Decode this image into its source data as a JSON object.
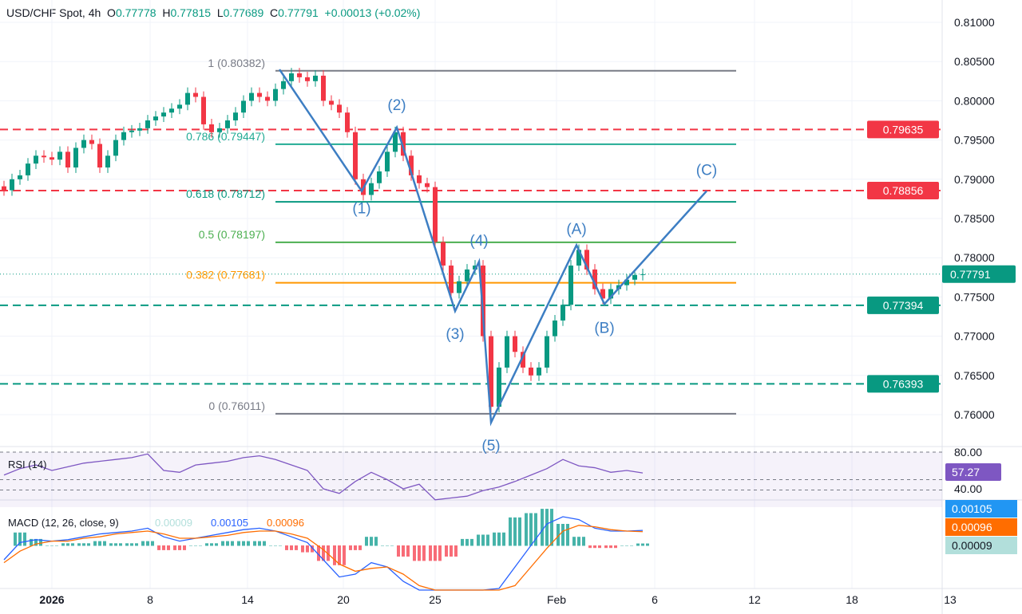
{
  "header": {
    "symbol": "USD/CHF Spot, 4h",
    "open_label": "O",
    "open": "0.77778",
    "high_label": "H",
    "high": "0.77815",
    "low_label": "L",
    "low": "0.77689",
    "close_label": "C",
    "close": "0.77791",
    "change": "+0.00013 (+0.02%)"
  },
  "colors": {
    "up": "#089981",
    "down": "#f23645",
    "wave": "#3d7ec3",
    "red_level": "#f23645",
    "green_level": "#089981"
  },
  "chart_data": [
    {
      "type": "candlestick",
      "title": "USD/CHF Spot, 4h",
      "ylim": [
        0.7555,
        0.8125
      ],
      "y_ticks": [
        "0.81000",
        "0.80500",
        "0.80000",
        "0.79500",
        "0.79000",
        "0.78500",
        "0.78000",
        "0.77500",
        "0.77000",
        "0.76500",
        "0.76000"
      ],
      "x_ticks": [
        "2026",
        "8",
        "14",
        "20",
        "25",
        "Feb",
        "6",
        "12",
        "18",
        "13"
      ],
      "closes": [
        0.7886,
        0.79,
        0.7905,
        0.792,
        0.793,
        0.7928,
        0.7925,
        0.7935,
        0.7915,
        0.794,
        0.795,
        0.7945,
        0.7915,
        0.793,
        0.795,
        0.796,
        0.7962,
        0.7965,
        0.7975,
        0.798,
        0.7985,
        0.799,
        0.7995,
        0.801,
        0.8005,
        0.797,
        0.796,
        0.7965,
        0.7975,
        0.7985,
        0.8,
        0.801,
        0.8005,
        0.8,
        0.8015,
        0.8025,
        0.8035,
        0.803,
        0.8025,
        0.8032,
        0.8,
        0.7995,
        0.7985,
        0.796,
        0.79,
        0.788,
        0.7895,
        0.791,
        0.7935,
        0.796,
        0.793,
        0.7905,
        0.7895,
        0.789,
        0.782,
        0.779,
        0.7755,
        0.777,
        0.7785,
        0.779,
        0.77,
        0.761,
        0.766,
        0.77,
        0.768,
        0.766,
        0.765,
        0.766,
        0.77,
        0.772,
        0.774,
        0.779,
        0.781,
        0.7785,
        0.776,
        0.7748,
        0.776,
        0.7765,
        0.7772,
        0.7778,
        0.7779
      ],
      "last_price": "0.77791",
      "fibonacci": [
        {
          "label": "1 (0.80382)",
          "value": 0.80382,
          "color": "#787b86"
        },
        {
          "label": "0.786 (0.79447)",
          "value": 0.79447,
          "color": "#22ab94"
        },
        {
          "label": "0.618 (0.78712)",
          "value": 0.78712,
          "color": "#089981"
        },
        {
          "label": "0.5 (0.78197)",
          "value": 0.78197,
          "color": "#4caf50"
        },
        {
          "label": "0.382 (0.77681)",
          "value": 0.77681,
          "color": "#ff9800"
        },
        {
          "label": "0 (0.76011)",
          "value": 0.76011,
          "color": "#787b86"
        }
      ],
      "levels": [
        {
          "value": 0.79635,
          "label": "0.79635",
          "color": "#f23645"
        },
        {
          "value": 0.78856,
          "label": "0.78856",
          "color": "#f23645"
        },
        {
          "value": 0.77394,
          "label": "0.77394",
          "color": "#089981"
        },
        {
          "value": 0.76393,
          "label": "0.76393",
          "color": "#089981"
        }
      ],
      "waves": [
        {
          "label": "",
          "bar": 34.5,
          "price": 0.804
        },
        {
          "label": "(1)",
          "bar": 44.8,
          "price": 0.7885
        },
        {
          "label": "(2)",
          "bar": 49.2,
          "price": 0.7966
        },
        {
          "label": "(3)",
          "bar": 56.5,
          "price": 0.7732
        },
        {
          "label": "(4)",
          "bar": 59.5,
          "price": 0.7795
        },
        {
          "label": "(5)",
          "bar": 61,
          "price": 0.759
        },
        {
          "label": "(A)",
          "bar": 71.7,
          "price": 0.7816
        },
        {
          "label": "(B)",
          "bar": 75.2,
          "price": 0.7741
        },
        {
          "label": "(C)",
          "bar": 88,
          "price": 0.7885
        }
      ]
    },
    {
      "type": "line",
      "title": "RSI (14)",
      "value": "57.27",
      "ylim": [
        20,
        85
      ],
      "y_ticks": [
        "80.00",
        "40.00"
      ],
      "values": [
        55,
        62,
        66,
        60,
        64,
        68,
        70,
        72,
        74,
        78,
        60,
        58,
        66,
        68,
        70,
        74,
        76,
        72,
        66,
        60,
        40,
        35,
        48,
        58,
        50,
        40,
        45,
        28,
        30,
        32,
        38,
        42,
        48,
        55,
        62,
        72,
        65,
        63,
        58,
        60,
        57.27
      ]
    },
    {
      "type": "line",
      "title": "MACD (12, 26, close, 9)",
      "histogram": "0.00009",
      "macd": "0.00105",
      "signal": "0.00096",
      "macd_values": [
        -0.001,
        0.0002,
        0.0004,
        0.0003,
        0.0004,
        0.0006,
        0.0008,
        0.0009,
        0.001,
        0.0012,
        0.0006,
        0.0003,
        0.0005,
        0.0007,
        0.0009,
        0.0011,
        0.0012,
        0.001,
        0.0006,
        0.0002,
        -0.001,
        -0.0022,
        -0.002,
        -0.0012,
        -0.0015,
        -0.0025,
        -0.0035,
        -0.0045,
        -0.005,
        -0.004,
        -0.0035,
        -0.003,
        -0.0015,
        0.0,
        0.0015,
        0.002,
        0.0018,
        0.0012,
        0.001,
        0.001,
        0.00105
      ],
      "signal_values": [
        -0.0012,
        -0.0004,
        0.0001,
        0.0003,
        0.0003,
        0.0005,
        0.0006,
        0.0008,
        0.0009,
        0.001,
        0.0008,
        0.0005,
        0.0005,
        0.0006,
        0.0007,
        0.0009,
        0.001,
        0.001,
        0.0008,
        0.0005,
        -0.0003,
        -0.0013,
        -0.0018,
        -0.0016,
        -0.0015,
        -0.002,
        -0.0028,
        -0.0038,
        -0.0045,
        -0.0043,
        -0.004,
        -0.0036,
        -0.0028,
        -0.0015,
        -0.0002,
        0.001,
        0.0014,
        0.0013,
        0.0011,
        0.001,
        0.00096
      ]
    }
  ],
  "price_labels": {
    "last": "0.77791"
  }
}
